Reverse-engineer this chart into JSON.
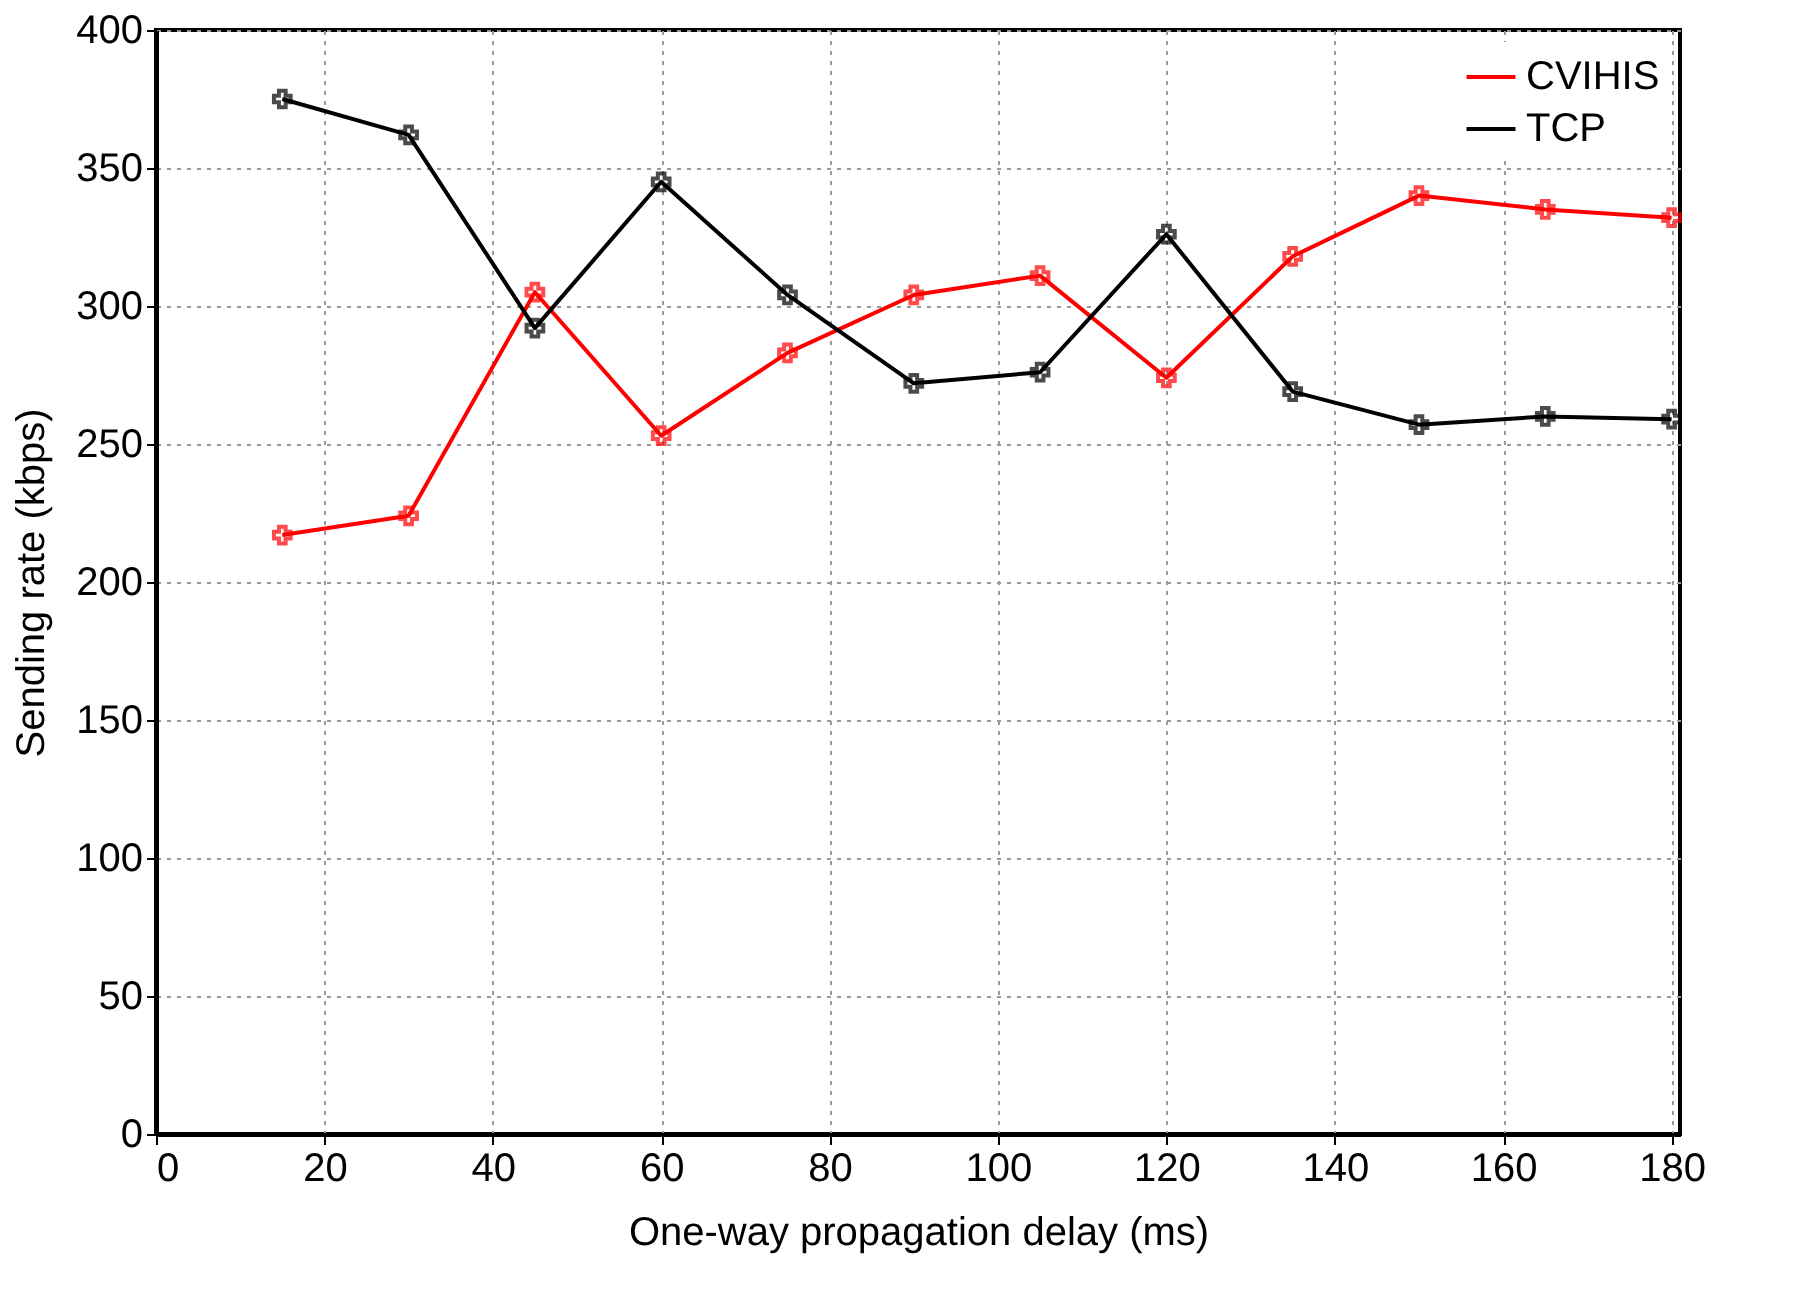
{
  "chart_data": {
    "type": "line",
    "xlabel": "One-way propagation delay (ms)",
    "ylabel": "Sending rate (kbps)",
    "x": [
      15,
      30,
      45,
      60,
      75,
      90,
      105,
      120,
      135,
      150,
      165,
      180
    ],
    "series": [
      {
        "name": "CVIHIS",
        "color": "#ff0000",
        "values": [
          217,
          224,
          305,
          253,
          283,
          304,
          311,
          274,
          318,
          340,
          335,
          332
        ]
      },
      {
        "name": "TCP",
        "color": "#000000",
        "values": [
          375,
          362,
          292,
          345,
          304,
          272,
          276,
          326,
          269,
          257,
          260,
          259
        ]
      }
    ],
    "xlim": [
      0,
      181
    ],
    "xticks": [
      0,
      20,
      40,
      60,
      80,
      100,
      120,
      140,
      160,
      180
    ],
    "ylim": [
      0,
      400
    ],
    "yticks": [
      0,
      50,
      100,
      150,
      200,
      250,
      300,
      350,
      400
    ],
    "grid": true,
    "legend": "top right",
    "marker": "cross",
    "line_style": "solid"
  }
}
